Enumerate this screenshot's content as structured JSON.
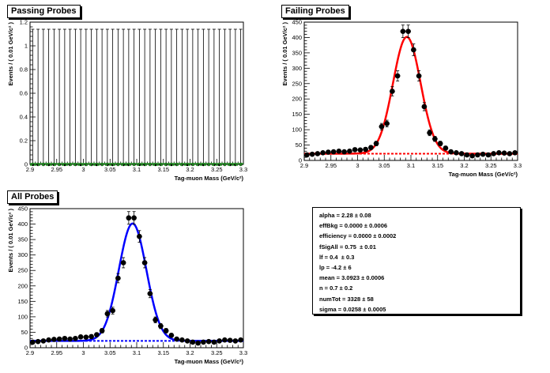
{
  "panels": {
    "passing": {
      "title": "Passing Probes"
    },
    "failing": {
      "title": "Failing Probes"
    },
    "all": {
      "title": "All Probes"
    }
  },
  "params": [
    {
      "name": "alpha",
      "value": "2.28 ± 0.08"
    },
    {
      "name": "effBkg",
      "value": "0.0000 ± 0.0006"
    },
    {
      "name": "efficiency",
      "value": "0.0000 ± 0.0002"
    },
    {
      "name": "fSigAll",
      "value": "0.75  ± 0.01"
    },
    {
      "name": "lf",
      "value": "0.4  ± 0.3"
    },
    {
      "name": "lp",
      "value": "-4.2 ± 6"
    },
    {
      "name": "mean",
      "value": "3.0923 ± 0.0006"
    },
    {
      "name": "n",
      "value": "0.7 ± 0.2"
    },
    {
      "name": "numTot",
      "value": "3328 ± 58"
    },
    {
      "name": "sigma",
      "value": "0.0258 ± 0.0005"
    }
  ],
  "chart_data": [
    {
      "id": "passing",
      "type": "scatter",
      "title": "Passing Probes",
      "xlabel": "Tag-muon Mass (GeV/c²)",
      "ylabel": "Events / ( 0.01 GeV/c² )",
      "xlim": [
        2.9,
        3.3
      ],
      "ylim": [
        0,
        1.2
      ],
      "xticks": [
        "2.9",
        "2.95",
        "3",
        "3.05",
        "3.1",
        "3.15",
        "3.2",
        "3.25",
        "3.3"
      ],
      "yticks": [
        "0",
        "0.2",
        "0.4",
        "0.6",
        "0.8",
        "1",
        "1.2"
      ],
      "x": [
        2.905,
        2.915,
        2.925,
        2.935,
        2.945,
        2.955,
        2.965,
        2.975,
        2.985,
        2.995,
        3.005,
        3.015,
        3.025,
        3.035,
        3.045,
        3.055,
        3.065,
        3.075,
        3.085,
        3.095,
        3.105,
        3.115,
        3.125,
        3.135,
        3.145,
        3.155,
        3.165,
        3.175,
        3.185,
        3.195,
        3.205,
        3.215,
        3.225,
        3.235,
        3.245,
        3.255,
        3.265,
        3.275,
        3.285,
        3.295
      ],
      "y": [
        0,
        0,
        0,
        0,
        0,
        0,
        0,
        0,
        0,
        0,
        0,
        0,
        0,
        0,
        0,
        0,
        0,
        0,
        0,
        0,
        0,
        0,
        0,
        0,
        0,
        0,
        0,
        0,
        0,
        0,
        0,
        0,
        0,
        0,
        0,
        0,
        0,
        0,
        0,
        0
      ],
      "yerr_up": 1.14,
      "fit_total": 0.0,
      "fit_background": 0.0,
      "colors": {
        "fit": "#2ca02c",
        "background": "#2ca02c"
      }
    },
    {
      "id": "failing",
      "type": "scatter",
      "title": "Failing Probes",
      "xlabel": "Tag-muon Mass (GeV/c²)",
      "ylabel": "Events / ( 0.01 GeV/c² )",
      "xlim": [
        2.9,
        3.3
      ],
      "ylim": [
        0,
        450
      ],
      "xticks": [
        "2.9",
        "2.95",
        "3",
        "3.05",
        "3.1",
        "3.15",
        "3.2",
        "3.25",
        "3.3"
      ],
      "yticks": [
        "0",
        "50",
        "100",
        "150",
        "200",
        "250",
        "300",
        "350",
        "400",
        "450"
      ],
      "x": [
        2.905,
        2.915,
        2.925,
        2.935,
        2.945,
        2.955,
        2.965,
        2.975,
        2.985,
        2.995,
        3.005,
        3.015,
        3.025,
        3.035,
        3.045,
        3.055,
        3.065,
        3.075,
        3.085,
        3.095,
        3.105,
        3.115,
        3.125,
        3.135,
        3.145,
        3.155,
        3.165,
        3.175,
        3.185,
        3.195,
        3.205,
        3.215,
        3.225,
        3.235,
        3.245,
        3.255,
        3.265,
        3.275,
        3.285,
        3.295
      ],
      "y": [
        18,
        20,
        22,
        25,
        27,
        28,
        30,
        28,
        30,
        35,
        34,
        36,
        42,
        55,
        110,
        120,
        225,
        275,
        420,
        420,
        360,
        275,
        175,
        90,
        70,
        55,
        40,
        28,
        25,
        22,
        18,
        15,
        18,
        20,
        18,
        22,
        25,
        24,
        22,
        25
      ],
      "fit_mean": 3.0923,
      "fit_sigma": 0.0258,
      "fit_peak": 380,
      "fit_background": 22,
      "colors": {
        "fit": "#ff0000",
        "background": "#ff0000"
      }
    },
    {
      "id": "all",
      "type": "scatter",
      "title": "All Probes",
      "xlabel": "Tag-muon Mass (GeV/c²)",
      "ylabel": "Events / ( 0.01 GeV/c² )",
      "xlim": [
        2.9,
        3.3
      ],
      "ylim": [
        0,
        450
      ],
      "xticks": [
        "2.9",
        "2.95",
        "3",
        "3.05",
        "3.1",
        "3.15",
        "3.2",
        "3.25",
        "3.3"
      ],
      "yticks": [
        "0",
        "50",
        "100",
        "150",
        "200",
        "250",
        "300",
        "350",
        "400",
        "450"
      ],
      "x": [
        2.905,
        2.915,
        2.925,
        2.935,
        2.945,
        2.955,
        2.965,
        2.975,
        2.985,
        2.995,
        3.005,
        3.015,
        3.025,
        3.035,
        3.045,
        3.055,
        3.065,
        3.075,
        3.085,
        3.095,
        3.105,
        3.115,
        3.125,
        3.135,
        3.145,
        3.155,
        3.165,
        3.175,
        3.185,
        3.195,
        3.205,
        3.215,
        3.225,
        3.235,
        3.245,
        3.255,
        3.265,
        3.275,
        3.285,
        3.295
      ],
      "y": [
        18,
        20,
        22,
        25,
        27,
        28,
        30,
        28,
        30,
        35,
        34,
        36,
        42,
        55,
        110,
        120,
        225,
        275,
        420,
        420,
        360,
        275,
        175,
        90,
        70,
        55,
        40,
        28,
        25,
        22,
        18,
        15,
        18,
        20,
        18,
        22,
        25,
        24,
        22,
        25
      ],
      "fit_mean": 3.0923,
      "fit_sigma": 0.0258,
      "fit_peak": 380,
      "fit_background": 22,
      "colors": {
        "fit": "#0000ff",
        "background": "#0000ff"
      }
    }
  ]
}
